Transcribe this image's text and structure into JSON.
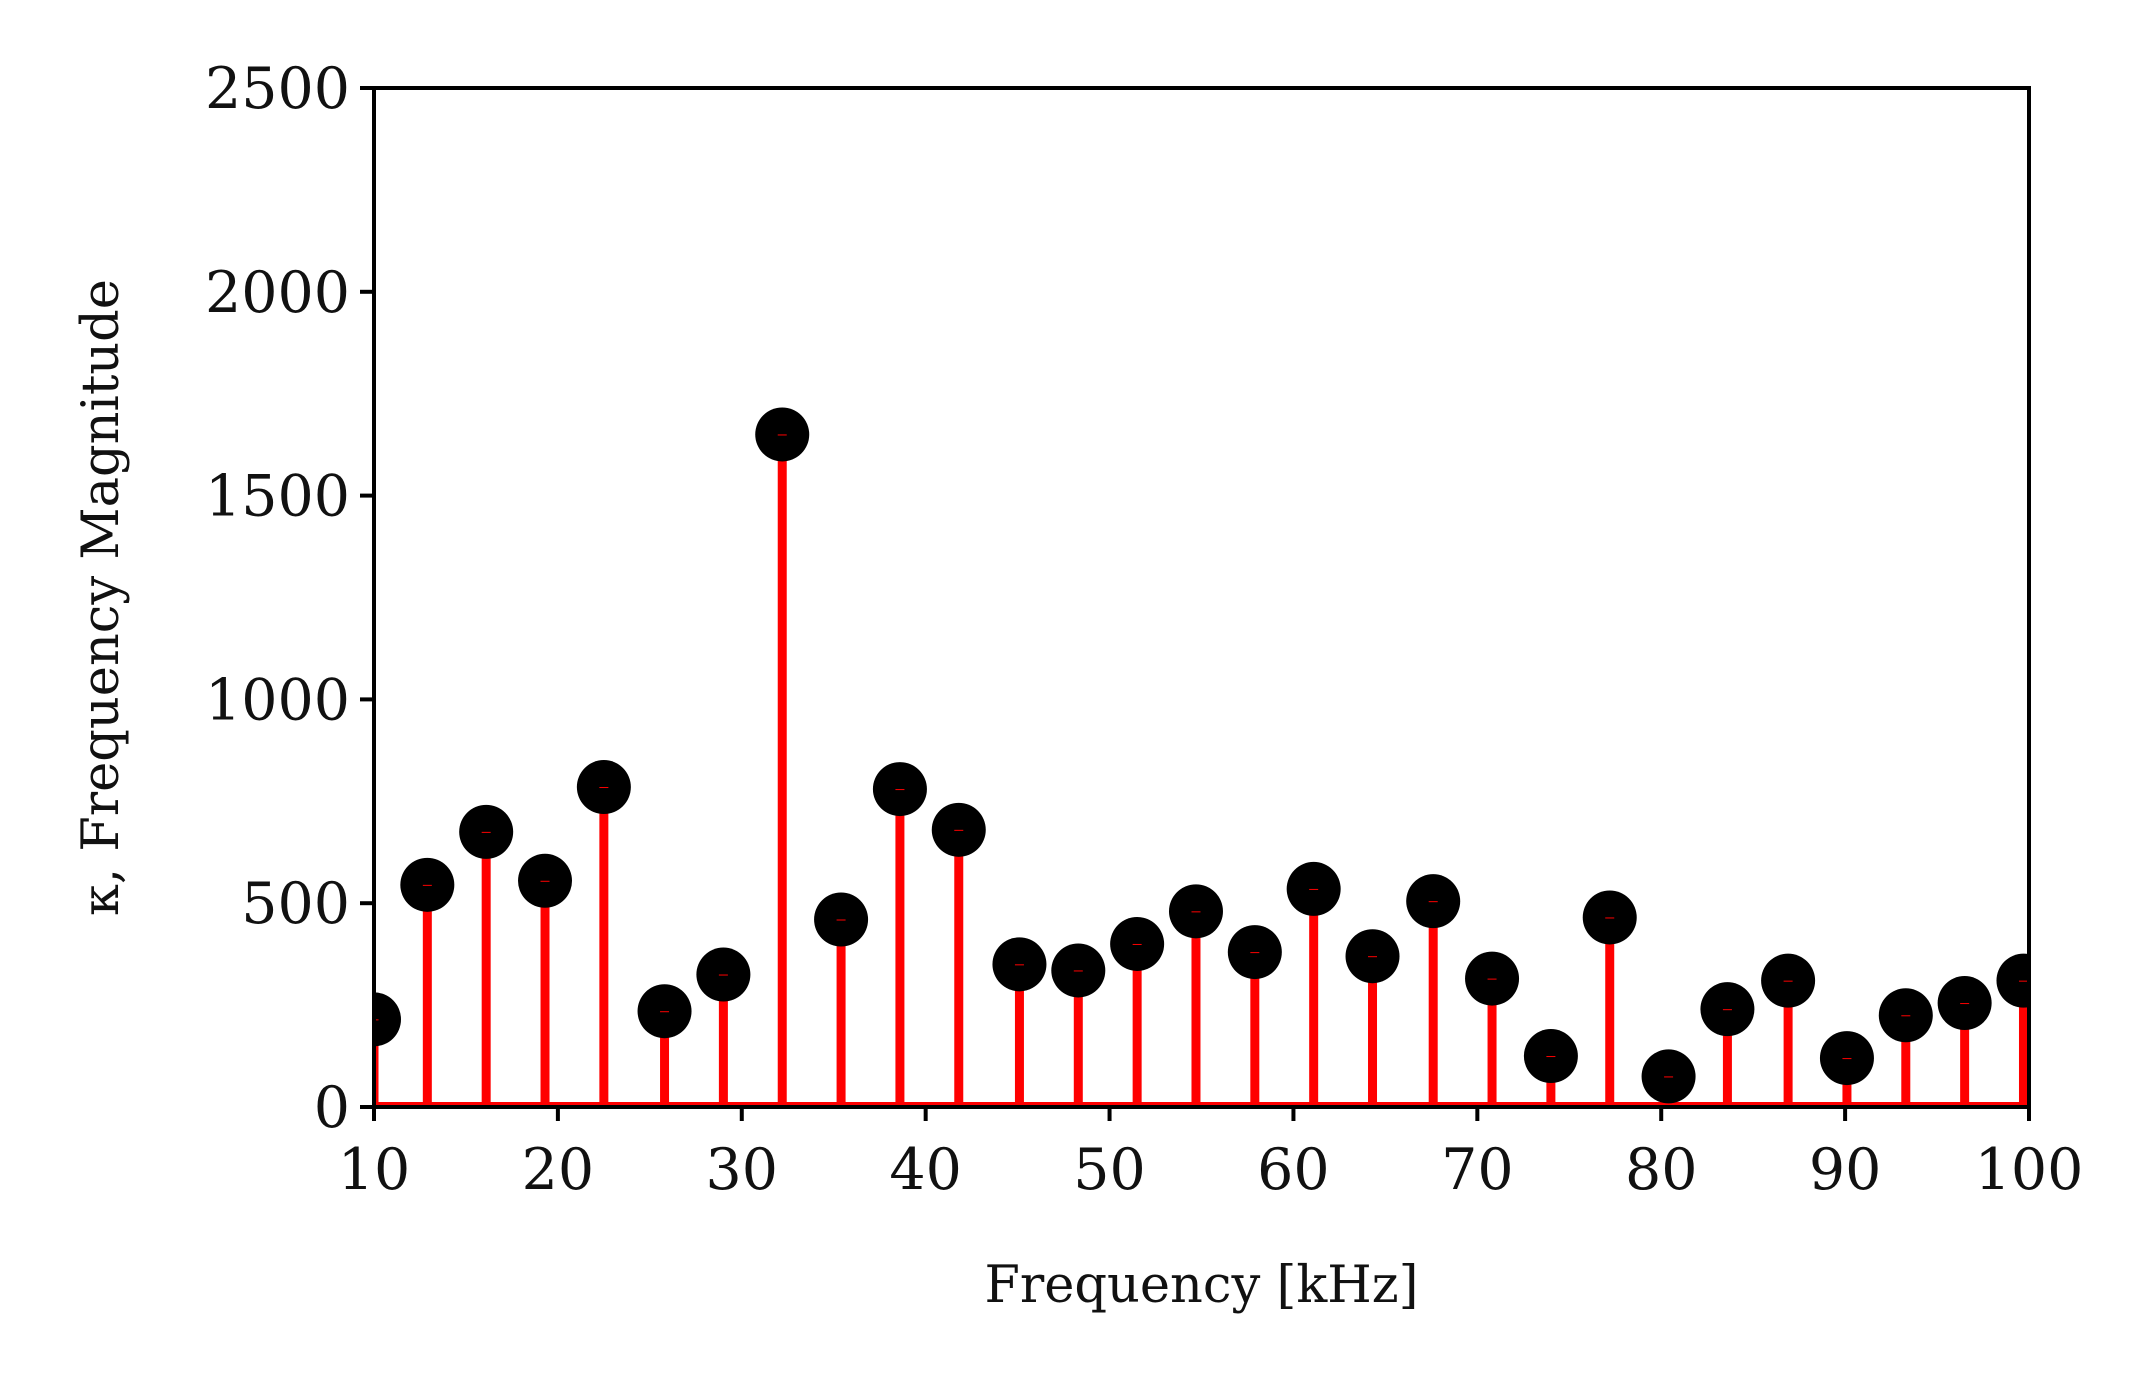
{
  "chart_data": {
    "type": "stem",
    "title": "",
    "xlabel": "Frequency [kHz]",
    "ylabel": "κ, Frequency Magnitude",
    "xlim": [
      10,
      100
    ],
    "ylim": [
      0,
      2500
    ],
    "xticks": [
      10,
      20,
      30,
      40,
      50,
      60,
      70,
      80,
      90,
      100
    ],
    "yticks": [
      0,
      500,
      1000,
      1500,
      2000,
      2500
    ],
    "grid": false,
    "legend": "none",
    "colors": {
      "stem": "#ff0000",
      "marker": "#000000",
      "baseline": "#ff0000",
      "axes": "#000000"
    },
    "series": [
      {
        "x": [
          10.0,
          12.9,
          16.1,
          19.3,
          22.5,
          25.8,
          29.0,
          32.2,
          35.4,
          38.6,
          41.8,
          45.1,
          48.3,
          51.5,
          54.7,
          57.9,
          61.1,
          64.3,
          67.6,
          70.8,
          74.0,
          77.2,
          80.4,
          83.6,
          86.9,
          90.1,
          93.3,
          96.5,
          99.7
        ],
        "y": [
          215,
          545,
          675,
          555,
          785,
          235,
          325,
          1650,
          460,
          780,
          680,
          350,
          335,
          400,
          480,
          380,
          535,
          370,
          505,
          315,
          125,
          465,
          75,
          240,
          310,
          120,
          225,
          255,
          310
        ]
      }
    ]
  }
}
